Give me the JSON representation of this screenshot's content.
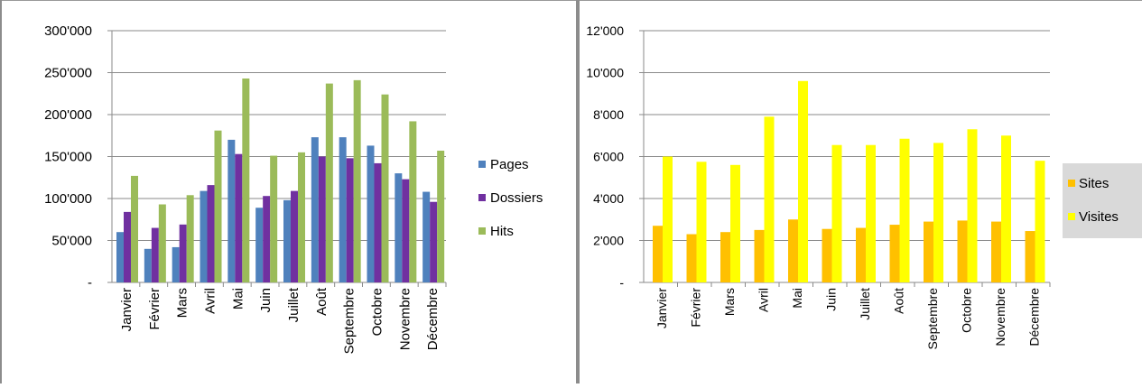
{
  "charts": [
    {
      "type": "bar",
      "categories": [
        "Janvier",
        "Février",
        "Mars",
        "Avril",
        "Mai",
        "Juin",
        "Juillet",
        "Août",
        "Septembre",
        "Octobre",
        "Novembre",
        "Décembre"
      ],
      "series": [
        {
          "name": "Pages",
          "color": "#4f81bd",
          "values": [
            60000,
            40000,
            42000,
            109000,
            170000,
            89000,
            98000,
            173000,
            173000,
            163000,
            130000,
            108000
          ]
        },
        {
          "name": "Dossiers",
          "color": "#7030a0",
          "values": [
            84000,
            65000,
            69000,
            116000,
            153000,
            103000,
            109000,
            150000,
            148000,
            142000,
            123000,
            96000
          ]
        },
        {
          "name": "Hits",
          "color": "#9bbb59",
          "values": [
            127000,
            93000,
            104000,
            181000,
            243000,
            151000,
            155000,
            237000,
            241000,
            224000,
            192000,
            157000
          ]
        }
      ],
      "ylim": [
        0,
        300000
      ],
      "yticks": [
        0,
        50000,
        100000,
        150000,
        200000,
        250000,
        300000
      ],
      "ytick_labels": [
        "-",
        "50'000",
        "100'000",
        "150'000",
        "200'000",
        "250'000",
        "300'000"
      ],
      "grid": true,
      "legend": "right",
      "title": "",
      "xlabel": "",
      "ylabel": ""
    },
    {
      "type": "bar",
      "categories": [
        "Janvier",
        "Février",
        "Mars",
        "Avril",
        "Mai",
        "Juin",
        "Juillet",
        "Août",
        "Septembre",
        "Octobre",
        "Novembre",
        "Décembre"
      ],
      "series": [
        {
          "name": "Sites",
          "color": "#ffc000",
          "values": [
            2700,
            2300,
            2400,
            2500,
            3000,
            2550,
            2600,
            2750,
            2900,
            2950,
            2900,
            2450
          ]
        },
        {
          "name": "Visites",
          "color": "#ffff00",
          "values": [
            6000,
            5750,
            5600,
            7900,
            9600,
            6550,
            6550,
            6850,
            6650,
            7300,
            7000,
            5800
          ]
        }
      ],
      "ylim": [
        0,
        12000
      ],
      "yticks": [
        0,
        2000,
        4000,
        6000,
        8000,
        10000,
        12000
      ],
      "ytick_labels": [
        "-",
        "2'000",
        "4'000",
        "6'000",
        "8'000",
        "10'000",
        "12'000"
      ],
      "grid": true,
      "legend": "right",
      "legend_bg": "#d9d9d9",
      "title": "",
      "xlabel": "",
      "ylabel": ""
    }
  ]
}
